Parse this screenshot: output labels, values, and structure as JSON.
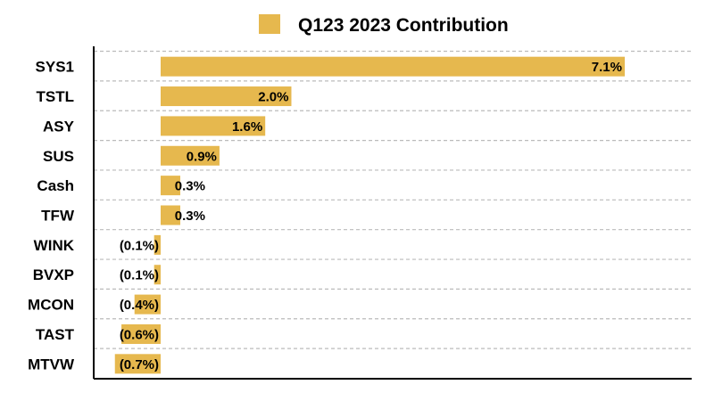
{
  "chart_data": {
    "type": "bar",
    "orientation": "horizontal",
    "categories": [
      "SYS1",
      "TSTL",
      "ASY",
      "SUS",
      "Cash",
      "TFW",
      "WINK",
      "BVXP",
      "MCON",
      "TAST",
      "MTVW"
    ],
    "series": [
      {
        "name": "Q123 2023 Contribution",
        "values": [
          7.1,
          2.0,
          1.6,
          0.9,
          0.3,
          0.3,
          -0.1,
          -0.1,
          -0.4,
          -0.6,
          -0.7
        ],
        "labels": [
          "7.1%",
          "2.0%",
          "1.6%",
          "0.9%",
          "0.3%",
          "0.3%",
          "(0.1%)",
          "(0.1%)",
          "(0.4%)",
          "(0.6%)",
          "(0.7%)"
        ],
        "color": "#E6B84E"
      }
    ],
    "xlim": [
      -1.0,
      8.0
    ],
    "grid": "horizontal-dashed",
    "legend_position": "top-center",
    "colors": {
      "bar": "#E6B84E",
      "grid": "#BBBBBB",
      "axis": "#000000"
    }
  }
}
